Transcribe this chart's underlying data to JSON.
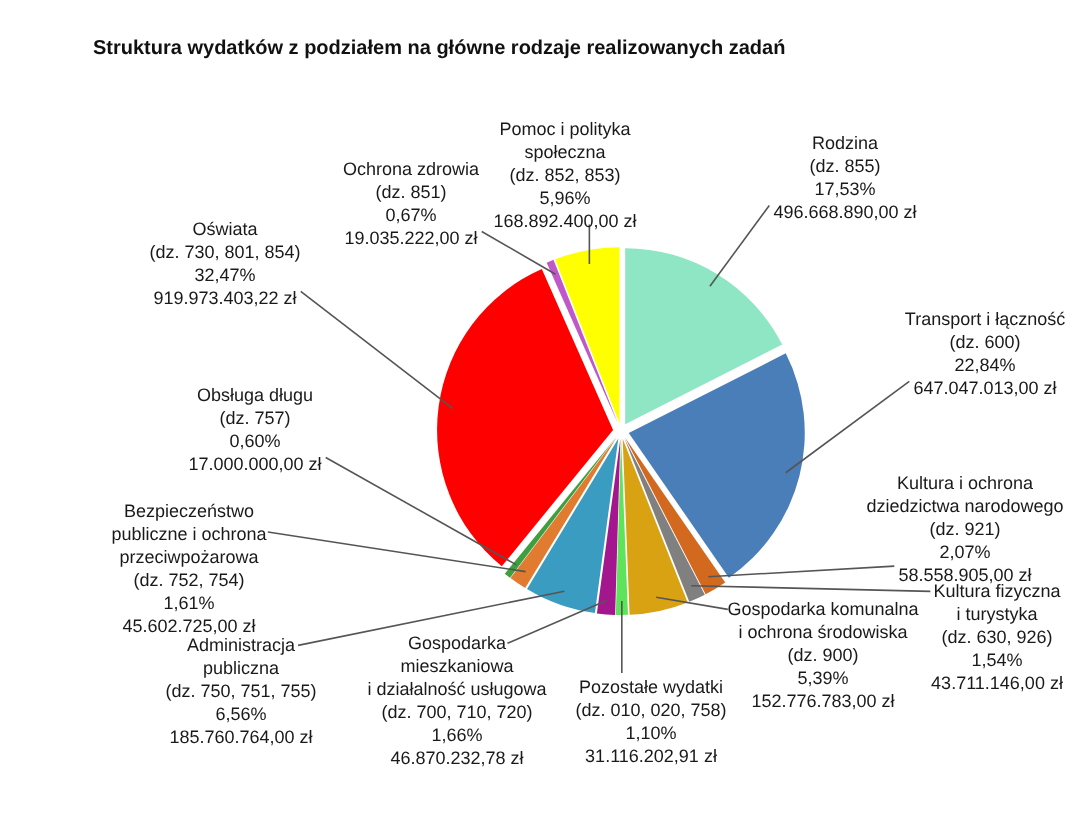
{
  "chart_data": {
    "type": "pie",
    "title": "Struktura wydatków z podziałem na główne rodzaje realizowanych zadań",
    "categories": [
      "Rodzina\n(dz. 855)",
      "Transport i łączność\n(dz. 600)",
      "Kultura i ochrona\ndziedzictwa narodowego\n(dz. 921)",
      "Kultura fizyczna\ni turystyka\n(dz. 630, 926)",
      "Gospodarka komunalna\ni ochrona środowiska\n(dz. 900)",
      "Pozostałe wydatki\n(dz. 010, 020, 758)",
      "Gospodarka\nmieszkaniowa\ni działalność usługowa\n(dz. 700, 710, 720)",
      "Administracja\npubliczna\n(dz. 750, 751, 755)",
      "Bezpieczeństwo\npubliczne i ochrona\nprzeciwpożarowa\n(dz. 752, 754)",
      "Obsługa długu\n(dz. 757)",
      "Oświata\n(dz. 730, 801, 854)",
      "Ochrona zdrowia\n(dz. 851)",
      "Pomoc i polityka\nspołeczna\n(dz. 852, 853)"
    ],
    "values": [
      496668890.0,
      647047013.0,
      58558905.0,
      43711146.0,
      152776783.0,
      31116202.91,
      46870232.78,
      185760764.0,
      45602725.0,
      17000000.0,
      919973403.22,
      19035222.0,
      168892400.0
    ],
    "value_labels": [
      "17,53%\n496.668.890,00 zł",
      "22,84%\n647.047.013,00 zł",
      "2,07%\n58.558.905,00 zł",
      "1,54%\n43.711.146,00 zł",
      "5,39%\n152.776.783,00 zł",
      "1,10%\n31.116.202,91 zł",
      "1,66%\n46.870.232,78 zł",
      "6,56%\n185.760.764,00 zł",
      "1,61%\n45.602.725,00 zł",
      "0,60%\n17.000.000,00 zł",
      "32,47%\n919.973.403,22 zł",
      "0,67%\n19.035.222,00 zł",
      "5,96%\n168.892.400,00 zł"
    ],
    "colors": [
      "#8ee6c4",
      "#4a7eb8",
      "#d2691e",
      "#808080",
      "#d9a213",
      "#5fe35a",
      "#a3168e",
      "#3a9cc0",
      "#e07b30",
      "#3f9f3f",
      "#ff0000",
      "#c058c8",
      "#ffff00"
    ]
  }
}
